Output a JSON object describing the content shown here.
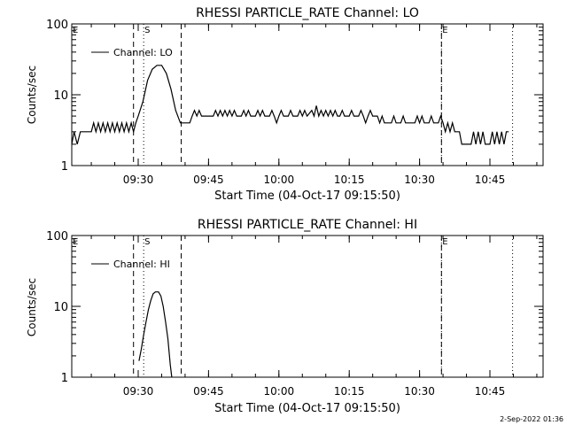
{
  "footer": {
    "timestamp": "2-Sep-2022 01:36"
  },
  "chart_data": [
    {
      "type": "line",
      "title": "RHESSI PARTICLE_RATE Channel: LO",
      "xlabel": "Start Time (04-Oct-17 09:15:50)",
      "ylabel": "Counts/sec",
      "yscale": "log",
      "ylim": [
        1,
        100
      ],
      "xlim": [
        "09:15:50",
        "10:56:20"
      ],
      "xticks": [
        "09:30",
        "09:45",
        "10:00",
        "10:15",
        "10:30",
        "10:45"
      ],
      "yticks": [
        "1",
        "10",
        "100"
      ],
      "legend": {
        "label": "Channel: LO",
        "position": "top-left"
      },
      "markers": [
        {
          "label": "E",
          "time": "09:15:50",
          "style": "dotted"
        },
        {
          "label": "S",
          "time": "09:31:10",
          "style": "dotted"
        },
        {
          "label": "E",
          "time": "10:34:40",
          "style": "dotted"
        },
        {
          "label": "",
          "time": "10:49:50",
          "style": "dotted"
        },
        {
          "label": "",
          "time": "09:29:00",
          "style": "dashed"
        },
        {
          "label": "",
          "time": "09:39:10",
          "style": "dashed"
        },
        {
          "label": "",
          "time": "10:34:40",
          "style": "dashed"
        }
      ],
      "series": [
        {
          "name": "Channel: LO",
          "points": [
            [
              "09:15:50",
              2
            ],
            [
              "09:16:20",
              3
            ],
            [
              "09:17:00",
              2
            ],
            [
              "09:17:40",
              3
            ],
            [
              "09:20:00",
              3
            ],
            [
              "09:20:30",
              4
            ],
            [
              "09:21:00",
              3
            ],
            [
              "09:21:30",
              4
            ],
            [
              "09:22:00",
              3
            ],
            [
              "09:22:30",
              4
            ],
            [
              "09:23:00",
              3
            ],
            [
              "09:23:30",
              4
            ],
            [
              "09:24:00",
              3
            ],
            [
              "09:24:30",
              4
            ],
            [
              "09:25:00",
              3
            ],
            [
              "09:25:30",
              4
            ],
            [
              "09:26:00",
              3
            ],
            [
              "09:26:30",
              4
            ],
            [
              "09:27:00",
              3
            ],
            [
              "09:27:30",
              4
            ],
            [
              "09:28:00",
              3
            ],
            [
              "09:28:30",
              4
            ],
            [
              "09:29:00",
              3
            ],
            [
              "09:29:30",
              4
            ],
            [
              "09:30:00",
              5
            ],
            [
              "09:31:00",
              8
            ],
            [
              "09:32:00",
              16
            ],
            [
              "09:33:00",
              23
            ],
            [
              "09:34:00",
              26
            ],
            [
              "09:35:00",
              26
            ],
            [
              "09:36:00",
              20
            ],
            [
              "09:37:00",
              12
            ],
            [
              "09:38:00",
              6
            ],
            [
              "09:39:00",
              4
            ],
            [
              "09:40:00",
              4
            ],
            [
              "09:41:00",
              4
            ],
            [
              "09:41:30",
              5
            ],
            [
              "09:42:00",
              6
            ],
            [
              "09:42:30",
              5
            ],
            [
              "09:43:00",
              6
            ],
            [
              "09:43:30",
              5
            ],
            [
              "09:45:00",
              5
            ],
            [
              "09:46:00",
              5
            ],
            [
              "09:46:30",
              6
            ],
            [
              "09:47:00",
              5
            ],
            [
              "09:47:30",
              6
            ],
            [
              "09:48:00",
              5
            ],
            [
              "09:48:30",
              6
            ],
            [
              "09:49:00",
              5
            ],
            [
              "09:49:30",
              6
            ],
            [
              "09:50:00",
              5
            ],
            [
              "09:50:30",
              6
            ],
            [
              "09:51:00",
              5
            ],
            [
              "09:52:00",
              5
            ],
            [
              "09:52:30",
              6
            ],
            [
              "09:53:00",
              5
            ],
            [
              "09:53:30",
              6
            ],
            [
              "09:54:00",
              5
            ],
            [
              "09:55:00",
              5
            ],
            [
              "09:55:30",
              6
            ],
            [
              "09:56:00",
              5
            ],
            [
              "09:56:30",
              6
            ],
            [
              "09:57:00",
              5
            ],
            [
              "09:58:00",
              5
            ],
            [
              "09:58:30",
              6
            ],
            [
              "09:59:00",
              5
            ],
            [
              "09:59:30",
              4
            ],
            [
              "10:00:00",
              5
            ],
            [
              "10:00:30",
              6
            ],
            [
              "10:01:00",
              5
            ],
            [
              "10:02:00",
              5
            ],
            [
              "10:02:30",
              6
            ],
            [
              "10:03:00",
              5
            ],
            [
              "10:04:00",
              5
            ],
            [
              "10:04:30",
              6
            ],
            [
              "10:05:00",
              5
            ],
            [
              "10:05:30",
              6
            ],
            [
              "10:06:00",
              5
            ],
            [
              "10:07:00",
              6
            ],
            [
              "10:07:30",
              5
            ],
            [
              "10:08:00",
              7
            ],
            [
              "10:08:30",
              5
            ],
            [
              "10:09:00",
              6
            ],
            [
              "10:09:30",
              5
            ],
            [
              "10:10:00",
              6
            ],
            [
              "10:10:30",
              5
            ],
            [
              "10:11:00",
              6
            ],
            [
              "10:11:30",
              5
            ],
            [
              "10:12:00",
              6
            ],
            [
              "10:12:30",
              5
            ],
            [
              "10:13:00",
              5
            ],
            [
              "10:13:30",
              6
            ],
            [
              "10:14:00",
              5
            ],
            [
              "10:15:00",
              5
            ],
            [
              "10:15:30",
              6
            ],
            [
              "10:16:00",
              5
            ],
            [
              "10:17:00",
              5
            ],
            [
              "10:17:30",
              6
            ],
            [
              "10:18:00",
              5
            ],
            [
              "10:18:30",
              4
            ],
            [
              "10:19:00",
              5
            ],
            [
              "10:19:30",
              6
            ],
            [
              "10:20:00",
              5
            ],
            [
              "10:21:00",
              5
            ],
            [
              "10:21:30",
              4
            ],
            [
              "10:22:00",
              5
            ],
            [
              "10:22:30",
              4
            ],
            [
              "10:23:00",
              4
            ],
            [
              "10:24:00",
              4
            ],
            [
              "10:24:30",
              5
            ],
            [
              "10:25:00",
              4
            ],
            [
              "10:26:00",
              4
            ],
            [
              "10:26:30",
              5
            ],
            [
              "10:27:00",
              4
            ],
            [
              "10:28:00",
              4
            ],
            [
              "10:29:00",
              4
            ],
            [
              "10:29:30",
              5
            ],
            [
              "10:30:00",
              4
            ],
            [
              "10:30:30",
              5
            ],
            [
              "10:31:00",
              4
            ],
            [
              "10:32:00",
              4
            ],
            [
              "10:32:30",
              5
            ],
            [
              "10:33:00",
              4
            ],
            [
              "10:34:00",
              4
            ],
            [
              "10:34:30",
              5
            ],
            [
              "10:35:00",
              4
            ],
            [
              "10:35:30",
              3
            ],
            [
              "10:36:00",
              4
            ],
            [
              "10:36:30",
              3
            ],
            [
              "10:37:00",
              4
            ],
            [
              "10:37:30",
              3
            ],
            [
              "10:38:00",
              3
            ],
            [
              "10:38:30",
              3
            ],
            [
              "10:39:00",
              2
            ],
            [
              "10:40:00",
              2
            ],
            [
              "10:41:00",
              2
            ],
            [
              "10:41:30",
              3
            ],
            [
              "10:42:00",
              2
            ],
            [
              "10:42:30",
              3
            ],
            [
              "10:43:00",
              2
            ],
            [
              "10:43:30",
              3
            ],
            [
              "10:44:00",
              2
            ],
            [
              "10:45:00",
              2
            ],
            [
              "10:45:30",
              3
            ],
            [
              "10:46:00",
              2
            ],
            [
              "10:46:30",
              3
            ],
            [
              "10:47:00",
              2
            ],
            [
              "10:47:30",
              3
            ],
            [
              "10:48:00",
              2
            ],
            [
              "10:48:30",
              3
            ],
            [
              "10:49:00",
              3
            ]
          ]
        }
      ]
    },
    {
      "type": "line",
      "title": "RHESSI PARTICLE_RATE Channel: HI",
      "xlabel": "Start Time (04-Oct-17 09:15:50)",
      "ylabel": "Counts/sec",
      "yscale": "log",
      "ylim": [
        1,
        100
      ],
      "xlim": [
        "09:15:50",
        "10:56:20"
      ],
      "xticks": [
        "09:30",
        "09:45",
        "10:00",
        "10:15",
        "10:30",
        "10:45"
      ],
      "yticks": [
        "1",
        "10",
        "100"
      ],
      "legend": {
        "label": "Channel: HI",
        "position": "top-left"
      },
      "markers": [
        {
          "label": "E",
          "time": "09:15:50",
          "style": "dotted"
        },
        {
          "label": "S",
          "time": "09:31:10",
          "style": "dotted"
        },
        {
          "label": "E",
          "time": "10:34:40",
          "style": "dotted"
        },
        {
          "label": "",
          "time": "10:49:50",
          "style": "dotted"
        },
        {
          "label": "",
          "time": "09:29:00",
          "style": "dashed"
        },
        {
          "label": "",
          "time": "09:39:10",
          "style": "dashed"
        },
        {
          "label": "",
          "time": "10:34:40",
          "style": "dashed"
        }
      ],
      "series": [
        {
          "name": "Channel: HI",
          "points": [
            [
              "09:30:10",
              1.7
            ],
            [
              "09:30:40",
              2.5
            ],
            [
              "09:31:10",
              4
            ],
            [
              "09:31:40",
              6
            ],
            [
              "09:32:10",
              9
            ],
            [
              "09:32:40",
              12
            ],
            [
              "09:33:10",
              15
            ],
            [
              "09:33:40",
              16
            ],
            [
              "09:34:20",
              16
            ],
            [
              "09:34:50",
              14
            ],
            [
              "09:35:20",
              10
            ],
            [
              "09:35:50",
              6
            ],
            [
              "09:36:20",
              3.5
            ],
            [
              "09:36:50",
              1.5
            ],
            [
              "09:37:10",
              1
            ]
          ]
        }
      ]
    }
  ]
}
